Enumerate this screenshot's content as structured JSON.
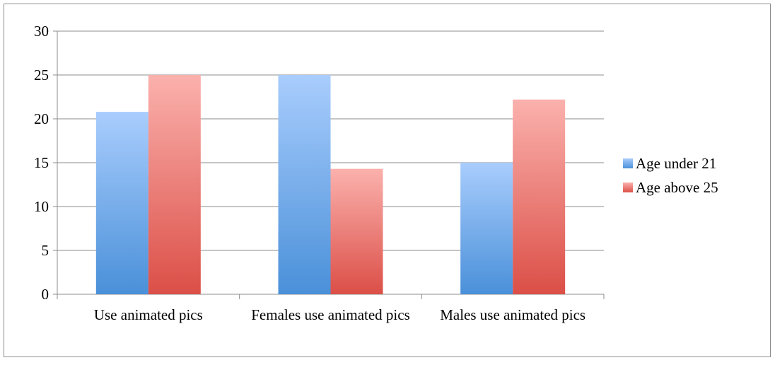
{
  "chart_data": {
    "type": "bar",
    "categories": [
      "Use animated pics",
      "Females use animated pics",
      "Males use animated pics"
    ],
    "series": [
      {
        "name": "Age under 21",
        "values": [
          20.8,
          25,
          15
        ],
        "color_top": "#a9cdfd",
        "color_bottom": "#4a90d9"
      },
      {
        "name": "Age above 25",
        "values": [
          25,
          14.3,
          22.2
        ],
        "color_top": "#fbb1ad",
        "color_bottom": "#db4f47"
      }
    ],
    "ylim": [
      0,
      30
    ],
    "yticks": [
      0,
      5,
      10,
      15,
      20,
      25,
      30
    ],
    "grid": true,
    "legend_position": "right"
  }
}
